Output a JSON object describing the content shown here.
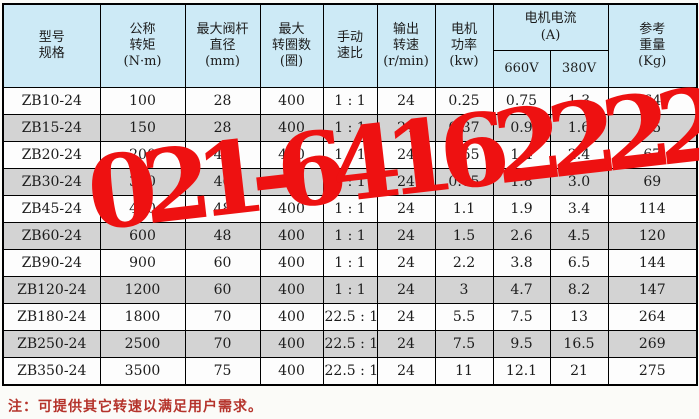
{
  "watermark": {
    "text": "021-64162222",
    "color": "#ee1111"
  },
  "note": {
    "text": "注：可提供其它转速以满足用户需求。",
    "color": "#b5332b"
  },
  "colors": {
    "header_bg": "#cdeaf6",
    "row_alt_bg": "#d3d3d3",
    "border": "#000000",
    "watermark_red": "#ee1111",
    "note_red": "#b5332b"
  },
  "table": {
    "header": {
      "model": "型号\n规格",
      "torque": "公称\n转矩\n(N·m)",
      "stem": "最大阀杆\n直径\n(mm)",
      "turns": "最大\n转圈数\n(圈)",
      "ratio": "手动\n速比",
      "speed": "输出\n转速\n(r/min)",
      "power": "电机\n功率\n(kw)",
      "current_group": "电机电流\n(A)",
      "v660": "660V",
      "v380": "380V",
      "weight": "参考\n重量\n(Kg)"
    },
    "rows": [
      [
        "ZB10-24",
        "100",
        "28",
        "400",
        "1 : 1",
        "24",
        "0.25",
        "0.75",
        "1.3",
        "64"
      ],
      [
        "ZB15-24",
        "150",
        "28",
        "400",
        "1 : 1",
        "24",
        "0.37",
        "0.9",
        "1.6",
        "65"
      ],
      [
        "ZB20-24",
        "200",
        "40",
        "400",
        "1 : 1",
        "24",
        "0.55",
        "1.4",
        "2.4",
        "67"
      ],
      [
        "ZB30-24",
        "300",
        "40",
        "400",
        "1 : 1",
        "24",
        "0.75",
        "1.8",
        "3.0",
        "69"
      ],
      [
        "ZB45-24",
        "450",
        "48",
        "400",
        "1 : 1",
        "24",
        "1.1",
        "1.9",
        "3.4",
        "114"
      ],
      [
        "ZB60-24",
        "600",
        "48",
        "400",
        "1 : 1",
        "24",
        "1.5",
        "2.6",
        "4.5",
        "120"
      ],
      [
        "ZB90-24",
        "900",
        "60",
        "400",
        "1 : 1",
        "24",
        "2.2",
        "3.8",
        "6.5",
        "144"
      ],
      [
        "ZB120-24",
        "1200",
        "60",
        "400",
        "1 : 1",
        "24",
        "3",
        "4.7",
        "8.2",
        "147"
      ],
      [
        "ZB180-24",
        "1800",
        "70",
        "400",
        "22.5 : 1",
        "24",
        "5.5",
        "7.5",
        "13",
        "264"
      ],
      [
        "ZB250-24",
        "2500",
        "70",
        "400",
        "22.5 : 1",
        "24",
        "7.5",
        "9.5",
        "16.5",
        "269"
      ],
      [
        "ZB350-24",
        "3500",
        "75",
        "400",
        "22.5 : 1",
        "24",
        "11",
        "12.1",
        "21",
        "275"
      ]
    ]
  }
}
